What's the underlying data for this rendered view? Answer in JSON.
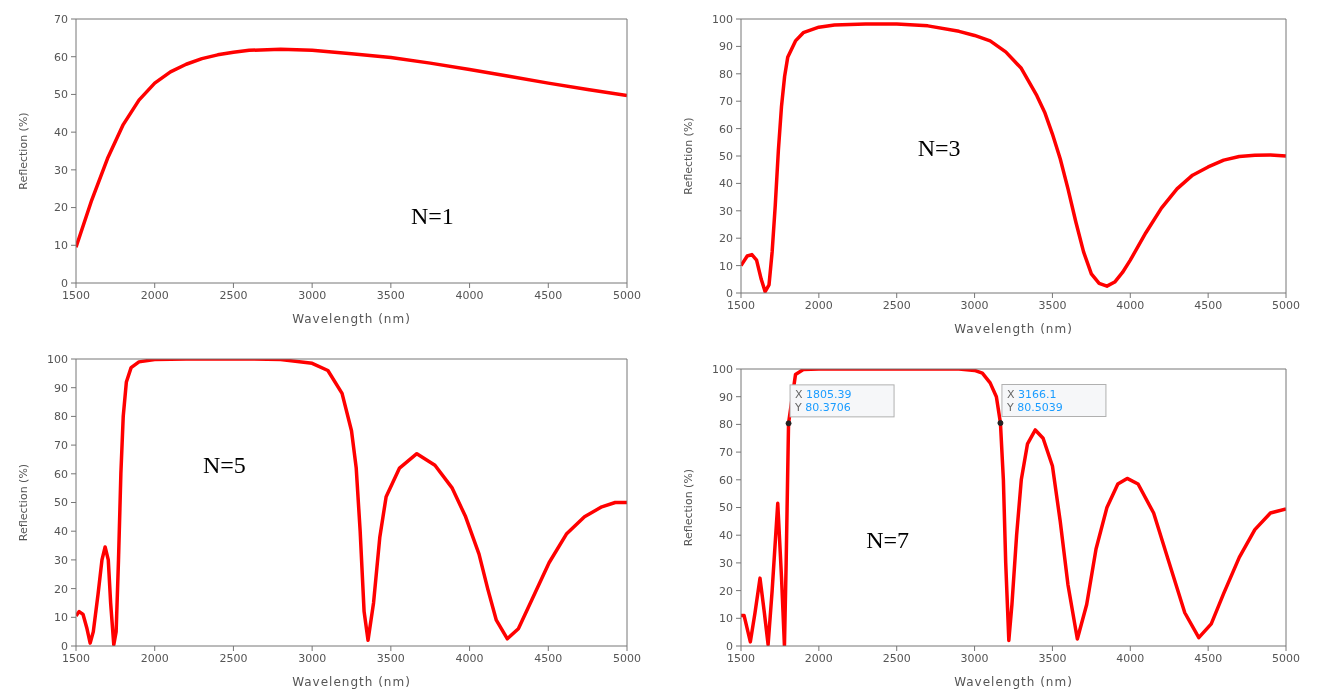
{
  "chart_data": [
    {
      "type": "line",
      "xlabel": "Wavelength (nm)",
      "ylabel": "Reflection (%)",
      "annotations": [
        "N=1"
      ],
      "xlim": [
        1500,
        5000
      ],
      "xticks": [
        1500,
        2000,
        2500,
        3000,
        3500,
        4000,
        4500,
        5000
      ],
      "ylim": [
        0,
        70
      ],
      "yticks": [
        0,
        10,
        20,
        30,
        40,
        50,
        60,
        70
      ],
      "grid": false,
      "legend": false,
      "marker": "none",
      "line_style": "solid",
      "series": [
        {
          "color": "#ff0000",
          "x": [
            1500,
            1600,
            1700,
            1800,
            1900,
            2000,
            2100,
            2200,
            2300,
            2400,
            2500,
            2600,
            2800,
            3000,
            3250,
            3500,
            3750,
            4000,
            4250,
            4500,
            4750,
            5000
          ],
          "values": [
            9.5,
            22,
            33,
            42,
            48.5,
            53,
            56,
            58,
            59.5,
            60.5,
            61.2,
            61.7,
            62,
            61.7,
            60.8,
            59.8,
            58.3,
            56.6,
            54.8,
            53,
            51.3,
            49.7
          ]
        }
      ]
    },
    {
      "type": "line",
      "xlabel": "Wavelength (nm)",
      "ylabel": "Reflection (%)",
      "annotations": [
        "N=3"
      ],
      "xlim": [
        1500,
        5000
      ],
      "xticks": [
        1500,
        2000,
        2500,
        3000,
        3500,
        4000,
        4500,
        5000
      ],
      "ylim": [
        0,
        100
      ],
      "yticks": [
        0,
        10,
        20,
        30,
        40,
        50,
        60,
        70,
        80,
        90,
        100
      ],
      "grid": false,
      "legend": false,
      "marker": "none",
      "line_style": "solid",
      "series": [
        {
          "color": "#ff0000",
          "x": [
            1500,
            1540,
            1570,
            1600,
            1630,
            1655,
            1680,
            1700,
            1720,
            1740,
            1760,
            1780,
            1800,
            1850,
            1900,
            2000,
            2100,
            2300,
            2500,
            2700,
            2900,
            3000,
            3100,
            3200,
            3300,
            3400,
            3450,
            3500,
            3550,
            3600,
            3650,
            3700,
            3750,
            3800,
            3850,
            3900,
            3950,
            4000,
            4100,
            4200,
            4300,
            4400,
            4500,
            4600,
            4700,
            4800,
            4900,
            5000
          ],
          "values": [
            10,
            13.5,
            14,
            12,
            5,
            0.5,
            3,
            15,
            32,
            52,
            68,
            79,
            86,
            92,
            95,
            97,
            97.8,
            98.2,
            98.2,
            97.5,
            95.5,
            94,
            92,
            88,
            82,
            72,
            66,
            58,
            49,
            38,
            26,
            15,
            7,
            3.5,
            2.5,
            4,
            7.5,
            12,
            22,
            31,
            38,
            43,
            46,
            48.5,
            49.8,
            50.3,
            50.4,
            50
          ]
        }
      ]
    },
    {
      "type": "line",
      "xlabel": "Wavelength (nm)",
      "ylabel": "Reflection (%)",
      "annotations": [
        "N=5"
      ],
      "xlim": [
        1500,
        5000
      ],
      "xticks": [
        1500,
        2000,
        2500,
        3000,
        3500,
        4000,
        4500,
        5000
      ],
      "ylim": [
        0,
        100
      ],
      "yticks": [
        0,
        10,
        20,
        30,
        40,
        50,
        60,
        70,
        80,
        90,
        100
      ],
      "grid": false,
      "legend": false,
      "marker": "none",
      "line_style": "solid",
      "series": [
        {
          "color": "#ff0000",
          "x": [
            1500,
            1520,
            1545,
            1570,
            1590,
            1610,
            1640,
            1665,
            1685,
            1705,
            1720,
            1740,
            1755,
            1770,
            1785,
            1800,
            1820,
            1850,
            1900,
            2000,
            2200,
            2600,
            2800,
            3000,
            3100,
            3190,
            3250,
            3280,
            3305,
            3330,
            3355,
            3390,
            3430,
            3470,
            3555,
            3665,
            3780,
            3890,
            3975,
            4060,
            4115,
            4170,
            4240,
            4310,
            4395,
            4505,
            4615,
            4730,
            4840,
            4925,
            5000
          ],
          "values": [
            10.5,
            12,
            11,
            6,
            1,
            5,
            18,
            30,
            34.5,
            30,
            15,
            0.5,
            5,
            30,
            60,
            80,
            92,
            97,
            99,
            99.8,
            100,
            100,
            99.8,
            98.5,
            96,
            88,
            75,
            62,
            40,
            12,
            2,
            15,
            38,
            52,
            62,
            67,
            63,
            55,
            45,
            32,
            20,
            9,
            2.5,
            6,
            16,
            29,
            39,
            45,
            48.5,
            50,
            50
          ]
        }
      ]
    },
    {
      "type": "line",
      "xlabel": "Wavelength (nm)",
      "ylabel": "Reflection (%)",
      "annotations": [
        "N=7",
        {
          "text": "X 1805.39\nY 80.3706",
          "x": 1805.39,
          "y": 80.3706
        },
        {
          "text": "X 3166.1\nY 80.5039",
          "x": 3166.1,
          "y": 80.5039
        }
      ],
      "xlim": [
        1500,
        5000
      ],
      "xticks": [
        1500,
        2000,
        2500,
        3000,
        3500,
        4000,
        4500,
        5000
      ],
      "ylim": [
        0,
        100
      ],
      "yticks": [
        0,
        10,
        20,
        30,
        40,
        50,
        60,
        70,
        80,
        90,
        100
      ],
      "grid": false,
      "legend": false,
      "marker": "none",
      "line_style": "solid",
      "series": [
        {
          "color": "#ff0000",
          "x": [
            1500,
            1520,
            1560,
            1590,
            1622,
            1650,
            1674,
            1700,
            1736,
            1760,
            1779,
            1790,
            1805.39,
            1850,
            1900,
            2000,
            2900,
            3000,
            3050,
            3100,
            3140,
            3166.1,
            3185,
            3200,
            3220,
            3240,
            3270,
            3300,
            3340,
            3390,
            3440,
            3500,
            3550,
            3600,
            3660,
            3720,
            3780,
            3850,
            3920,
            3980,
            4050,
            4150,
            4250,
            4350,
            4440,
            4520,
            4600,
            4700,
            4800,
            4900,
            5000
          ],
          "values": [
            11,
            11,
            1.5,
            12,
            24.5,
            12,
            0.5,
            20,
            51.5,
            25,
            0,
            30,
            80.4,
            98,
            99.8,
            100,
            100,
            99.5,
            98.5,
            95,
            90,
            80.5,
            60,
            30,
            2,
            15,
            40,
            60,
            73,
            78,
            75,
            65,
            45,
            22,
            2.5,
            15,
            35,
            50,
            58.5,
            60.5,
            58.5,
            48,
            30,
            12,
            3,
            8,
            19,
            32,
            42,
            48,
            49.5
          ]
        }
      ]
    }
  ]
}
